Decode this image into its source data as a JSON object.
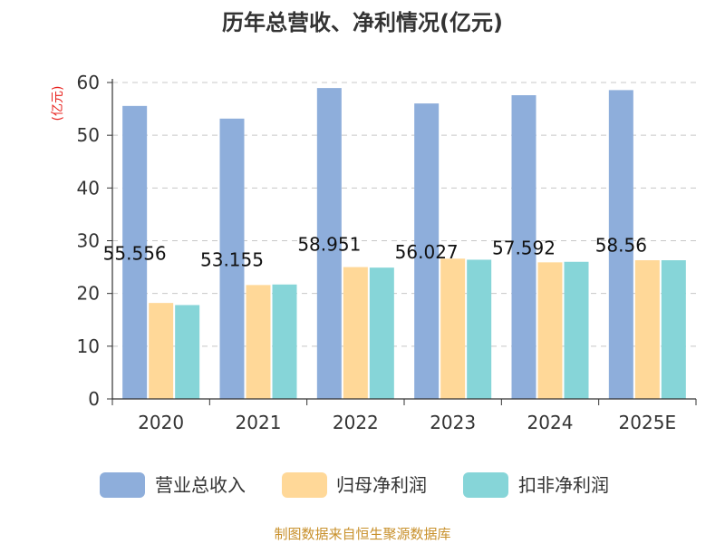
{
  "chart_data": {
    "type": "bar",
    "title": "历年总营收、净利情况(亿元)",
    "ylabel": "(亿元)",
    "xlabel": "",
    "categories": [
      "2020",
      "2021",
      "2022",
      "2023",
      "2024",
      "2025E"
    ],
    "ylim": [
      0,
      60
    ],
    "yticks": [
      0,
      10,
      20,
      30,
      40,
      50,
      60
    ],
    "grid": true,
    "legend_position": "bottom",
    "series": [
      {
        "name": "营业总收入",
        "color": "#8eaedb",
        "values": [
          55.556,
          53.155,
          58.951,
          56.027,
          57.592,
          58.56
        ],
        "labels": [
          "55.556",
          "53.155",
          "58.951",
          "56.027",
          "57.592",
          "58.56"
        ]
      },
      {
        "name": "归母净利润",
        "color": "#ffd898",
        "values": [
          18.2,
          21.6,
          25.0,
          26.6,
          25.9,
          26.3
        ]
      },
      {
        "name": "扣非净利润",
        "color": "#86d5d8",
        "values": [
          17.8,
          21.7,
          24.9,
          26.4,
          26.0,
          26.3
        ]
      }
    ],
    "source": "制图数据来自恒生聚源数据库"
  }
}
